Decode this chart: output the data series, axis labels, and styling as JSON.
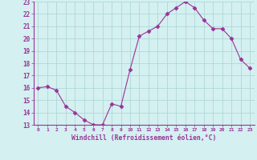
{
  "x": [
    0,
    1,
    2,
    3,
    4,
    5,
    6,
    7,
    8,
    9,
    10,
    11,
    12,
    13,
    14,
    15,
    16,
    17,
    18,
    19,
    20,
    21,
    22,
    23
  ],
  "y": [
    16.0,
    16.1,
    15.8,
    14.5,
    14.0,
    13.4,
    13.0,
    13.0,
    14.7,
    14.5,
    17.5,
    20.2,
    20.6,
    21.0,
    22.0,
    22.5,
    23.0,
    22.5,
    21.5,
    20.8,
    20.8,
    20.0,
    18.3,
    17.6
  ],
  "ylim": [
    13,
    23
  ],
  "yticks": [
    13,
    14,
    15,
    16,
    17,
    18,
    19,
    20,
    21,
    22,
    23
  ],
  "xticks": [
    0,
    1,
    2,
    3,
    4,
    5,
    6,
    7,
    8,
    9,
    10,
    11,
    12,
    13,
    14,
    15,
    16,
    17,
    18,
    19,
    20,
    21,
    22,
    23
  ],
  "xlabel": "Windchill (Refroidissement éolien,°C)",
  "line_color": "#993399",
  "marker": "D",
  "marker_size": 2.5,
  "bg_color": "#d4f0f0",
  "grid_color": "#b0d8d8",
  "tick_color": "#993399",
  "label_color": "#993399",
  "spine_color": "#993399"
}
